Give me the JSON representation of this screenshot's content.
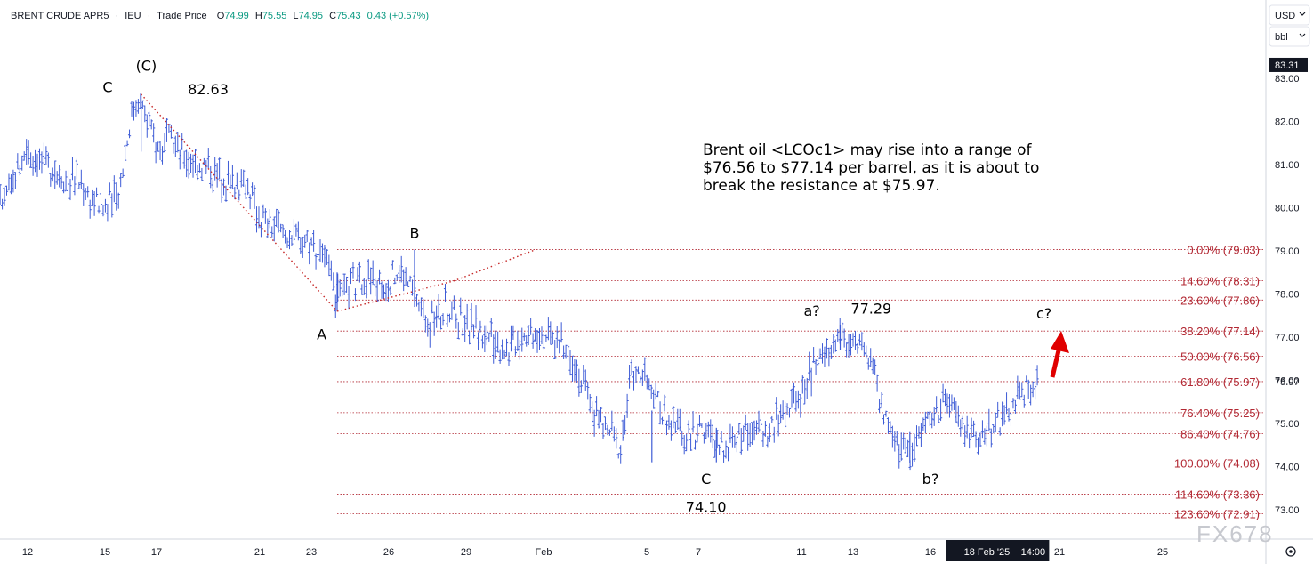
{
  "header": {
    "symbol": "BRENT CRUDE APR5",
    "exchange": "IEU",
    "price_type": "Trade Price",
    "open_label": "O",
    "open": "74.99",
    "high_label": "H",
    "high": "75.55",
    "low_label": "L",
    "low": "74.95",
    "close_label": "C",
    "close": "75.43",
    "change": "0.43 (+0.57%)"
  },
  "currency": {
    "currency": "USD",
    "unit": "bbl"
  },
  "watermark": "FX678",
  "colors": {
    "bars": "#3d5bd6",
    "fib": "#b22833",
    "wave_line": "#c62828",
    "arrow": "#e00000",
    "change": "#089981"
  },
  "chart_data": {
    "type": "ohlc",
    "y_axis": {
      "min": 72.5,
      "max": 83.6,
      "ticks": [
        "83.00",
        "82.00",
        "81.00",
        "80.00",
        "79.00",
        "78.00",
        "77.00",
        "76.00",
        "75.00",
        "74.00",
        "73.00"
      ]
    },
    "price_tags": {
      "high_tag": "83.31",
      "current_tag": "75.97"
    },
    "x_axis": {
      "ticks": [
        {
          "label": "12",
          "t": 12
        },
        {
          "label": "15",
          "t": 15
        },
        {
          "label": "17",
          "t": 17
        },
        {
          "label": "21",
          "t": 21
        },
        {
          "label": "23",
          "t": 23
        },
        {
          "label": "26",
          "t": 26
        },
        {
          "label": "29",
          "t": 29
        },
        {
          "label": "Feb",
          "t": 32
        },
        {
          "label": "5",
          "t": 36
        },
        {
          "label": "7",
          "t": 38
        },
        {
          "label": "11",
          "t": 42
        },
        {
          "label": "13",
          "t": 44
        },
        {
          "label": "16",
          "t": 47
        },
        {
          "label": "21",
          "t": 52
        },
        {
          "label": "25",
          "t": 56
        }
      ],
      "crosshair_date": "18 Feb '25",
      "crosshair_time": "14:00",
      "crosshair_t": 49.6
    },
    "series_path": [
      [
        10.0,
        77.9
      ],
      [
        10.3,
        78.8
      ],
      [
        10.8,
        80.0
      ],
      [
        11.4,
        80.5
      ],
      [
        12.0,
        81.4
      ],
      [
        12.7,
        81.0
      ],
      [
        13.3,
        80.8
      ],
      [
        14.0,
        80.6
      ],
      [
        14.5,
        80.2
      ],
      [
        15.0,
        80.0
      ],
      [
        15.5,
        80.3
      ],
      [
        16.0,
        82.1
      ],
      [
        16.3,
        82.6
      ],
      [
        16.7,
        81.9
      ],
      [
        17.0,
        81.4
      ],
      [
        17.5,
        81.6
      ],
      [
        18.0,
        81.2
      ],
      [
        18.8,
        81.0
      ],
      [
        19.5,
        80.7
      ],
      [
        20.5,
        80.5
      ],
      [
        21.0,
        79.8
      ],
      [
        21.6,
        79.5
      ],
      [
        22.4,
        79.3
      ],
      [
        23.1,
        79.2
      ],
      [
        23.4,
        79.0
      ],
      [
        24.0,
        77.9
      ],
      [
        24.6,
        78.2
      ],
      [
        25.2,
        78.4
      ],
      [
        25.8,
        78.1
      ],
      [
        26.4,
        78.6
      ],
      [
        27.0,
        78.0
      ],
      [
        27.6,
        77.3
      ],
      [
        28.2,
        77.7
      ],
      [
        28.8,
        77.4
      ],
      [
        29.4,
        77.2
      ],
      [
        30.0,
        77.0
      ],
      [
        30.6,
        76.7
      ],
      [
        31.2,
        77.1
      ],
      [
        31.8,
        77.2
      ],
      [
        32.5,
        76.9
      ],
      [
        33.1,
        76.6
      ],
      [
        33.6,
        75.8
      ],
      [
        34.0,
        75.2
      ],
      [
        34.6,
        74.8
      ],
      [
        35.0,
        74.4
      ],
      [
        35.4,
        76.2
      ],
      [
        35.9,
        76.0
      ],
      [
        36.6,
        75.3
      ],
      [
        37.0,
        74.9
      ],
      [
        37.6,
        74.7
      ],
      [
        38.2,
        74.9
      ],
      [
        38.8,
        74.4
      ],
      [
        39.4,
        74.7
      ],
      [
        40.0,
        74.9
      ],
      [
        40.6,
        74.8
      ],
      [
        41.2,
        75.2
      ],
      [
        41.8,
        75.5
      ],
      [
        42.4,
        76.2
      ],
      [
        43.0,
        76.6
      ],
      [
        43.4,
        77.1
      ],
      [
        43.9,
        76.9
      ],
      [
        44.4,
        76.7
      ],
      [
        44.9,
        76.0
      ],
      [
        45.3,
        75.0
      ],
      [
        45.8,
        74.5
      ],
      [
        46.2,
        74.2
      ],
      [
        46.6,
        74.9
      ],
      [
        47.2,
        75.3
      ],
      [
        47.8,
        75.5
      ],
      [
        48.3,
        74.8
      ],
      [
        48.8,
        74.7
      ],
      [
        49.4,
        75.0
      ],
      [
        50.0,
        75.2
      ],
      [
        50.5,
        75.7
      ],
      [
        51.2,
        75.9
      ]
    ],
    "extreme_bars": [
      {
        "t": 16.4,
        "high": 82.63,
        "low": 81.3
      },
      {
        "t": 24.0,
        "high": 78.5,
        "low": 77.6
      },
      {
        "t": 27.0,
        "high": 79.03,
        "low": 77.7
      },
      {
        "t": 36.2,
        "high": 75.3,
        "low": 74.1
      },
      {
        "t": 38.7,
        "high": 74.9,
        "low": 74.1
      },
      {
        "t": 43.5,
        "high": 77.29,
        "low": 76.7
      },
      {
        "t": 46.2,
        "high": 74.8,
        "low": 74.08
      }
    ],
    "fib_levels": [
      {
        "ratio": "0.00%",
        "price": 79.03,
        "label": "0.00% (79.03)"
      },
      {
        "ratio": "14.60%",
        "price": 78.31,
        "label": "14.60% (78.31)"
      },
      {
        "ratio": "23.60%",
        "price": 77.86,
        "label": "23.60% (77.86)"
      },
      {
        "ratio": "38.20%",
        "price": 77.14,
        "label": "38.20% (77.14)"
      },
      {
        "ratio": "50.00%",
        "price": 76.56,
        "label": "50.00% (76.56)"
      },
      {
        "ratio": "61.80%",
        "price": 75.97,
        "label": "61.80% (75.97)"
      },
      {
        "ratio": "76.40%",
        "price": 75.25,
        "label": "76.40% (75.25)"
      },
      {
        "ratio": "86.40%",
        "price": 74.76,
        "label": "86.40% (74.76)"
      },
      {
        "ratio": "100.00%",
        "price": 74.08,
        "label": "100.00% (74.08)"
      },
      {
        "ratio": "114.60%",
        "price": 73.36,
        "label": "114.60% (73.36)"
      },
      {
        "ratio": "123.60%",
        "price": 72.91,
        "label": "123.60% (72.91)"
      }
    ],
    "fib_start_t": 24.0,
    "wave_lines": [
      {
        "points": [
          [
            16.4,
            82.63
          ],
          [
            24.0,
            77.6
          ]
        ]
      },
      {
        "points": [
          [
            24.0,
            77.6
          ],
          [
            28.5,
            78.3
          ],
          [
            31.7,
            79.03
          ]
        ]
      }
    ],
    "wave_labels": [
      {
        "text": "(C)",
        "t": 16.6,
        "price": 83.18
      },
      {
        "text": "C",
        "t": 15.1,
        "price": 82.68
      },
      {
        "text": "82.63",
        "t": 19.0,
        "price": 82.63
      },
      {
        "text": "A",
        "t": 23.4,
        "price": 76.95
      },
      {
        "text": "B",
        "t": 27.0,
        "price": 79.3
      },
      {
        "text": "C",
        "t": 38.3,
        "price": 73.6
      },
      {
        "text": "74.10",
        "t": 38.3,
        "price": 72.95
      },
      {
        "text": "a?",
        "t": 42.4,
        "price": 77.5
      },
      {
        "text": "77.29",
        "t": 44.7,
        "price": 77.55
      },
      {
        "text": "b?",
        "t": 47.0,
        "price": 73.6
      },
      {
        "text": "c?",
        "t": 51.4,
        "price": 77.43
      }
    ],
    "annotation": [
      "Brent oil <LCOc1> may rise into a range of",
      "$76.56 to $77.14 per barrel, as it is about to",
      "break the resistance at $75.97."
    ]
  }
}
